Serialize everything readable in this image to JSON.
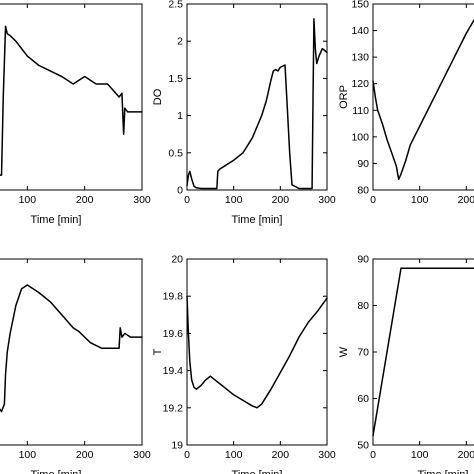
{
  "chart_data": [
    {
      "type": "line",
      "xlabel": "Time [min]",
      "ylabel": "",
      "xlim": [
        0,
        300
      ],
      "ylim": [
        0,
        100
      ],
      "x_ticks": [
        0,
        100,
        200,
        300
      ],
      "y_ticks": [],
      "series": [
        {
          "x": [
            0,
            5,
            10,
            15,
            20,
            30,
            40,
            50,
            55,
            58,
            62,
            65,
            70,
            80,
            90,
            100,
            120,
            140,
            160,
            180,
            200,
            220,
            240,
            260,
            265,
            268,
            270,
            275,
            285,
            300
          ],
          "y": [
            45,
            48,
            58,
            64,
            66,
            58,
            30,
            8,
            8,
            50,
            88,
            84,
            83,
            80,
            76,
            72,
            67,
            64,
            61,
            57,
            61,
            57,
            57,
            50,
            52,
            30,
            44,
            42,
            42,
            42
          ]
        }
      ]
    },
    {
      "type": "line",
      "ylabel": "DO",
      "xlabel": "Time [min]",
      "xlim": [
        0,
        300
      ],
      "ylim": [
        0,
        2.5
      ],
      "x_ticks": [
        0,
        100,
        200,
        300
      ],
      "y_ticks": [
        0,
        0.5,
        1,
        1.5,
        2,
        2.5
      ],
      "series": [
        {
          "x": [
            0,
            3,
            6,
            10,
            15,
            20,
            30,
            40,
            50,
            60,
            64,
            66,
            70,
            80,
            100,
            120,
            140,
            150,
            160,
            170,
            180,
            185,
            190,
            195,
            200,
            210,
            215,
            220,
            225,
            240,
            260,
            268,
            270,
            272,
            275,
            278,
            283,
            290,
            300
          ],
          "y": [
            0.06,
            0.2,
            0.25,
            0.15,
            0.05,
            0.03,
            0.02,
            0.02,
            0.02,
            0.02,
            0.02,
            0.25,
            0.28,
            0.32,
            0.4,
            0.5,
            0.7,
            0.85,
            1.0,
            1.2,
            1.48,
            1.6,
            1.62,
            1.6,
            1.65,
            1.68,
            1.1,
            0.5,
            0.07,
            0.02,
            0.02,
            0.02,
            1.2,
            2.3,
            1.9,
            1.7,
            1.8,
            1.9,
            1.85
          ]
        }
      ]
    },
    {
      "type": "line",
      "ylabel": "ORP",
      "xlabel": "",
      "xlim": [
        0,
        300
      ],
      "ylim": [
        80,
        150
      ],
      "x_ticks": [
        0,
        100,
        200
      ],
      "y_ticks": [
        80,
        90,
        100,
        110,
        120,
        130,
        140,
        150
      ],
      "series": [
        {
          "x": [
            0,
            5,
            10,
            20,
            30,
            40,
            50,
            55,
            60,
            70,
            80,
            100,
            120,
            140,
            160,
            180,
            200,
            220,
            240,
            260,
            280,
            300
          ],
          "y": [
            121,
            115,
            110,
            105,
            99,
            94,
            89,
            84,
            86,
            91,
            97,
            104,
            111,
            118,
            125,
            132,
            139,
            145,
            147,
            148,
            149,
            150
          ]
        }
      ]
    },
    {
      "type": "line",
      "ylabel": "",
      "xlabel": "Time [min]",
      "xlim": [
        0,
        300
      ],
      "ylim": [
        0,
        100
      ],
      "x_ticks": [
        0,
        100,
        200,
        300
      ],
      "y_ticks": [],
      "series": [
        {
          "x": [
            0,
            5,
            15,
            25,
            35,
            45,
            55,
            60,
            62,
            65,
            70,
            80,
            90,
            100,
            110,
            120,
            140,
            160,
            180,
            190,
            200,
            210,
            230,
            250,
            260,
            262,
            265,
            270,
            280,
            290,
            300
          ],
          "y": [
            50,
            46,
            34,
            28,
            26,
            22,
            18,
            22,
            38,
            50,
            60,
            75,
            84,
            86,
            84,
            82,
            77,
            70,
            63,
            61,
            58,
            55,
            52,
            52,
            52,
            63,
            58,
            60,
            58,
            58,
            58
          ]
        }
      ]
    },
    {
      "type": "line",
      "ylabel": "T",
      "xlabel": "Time [min]",
      "xlim": [
        0,
        300
      ],
      "ylim": [
        19,
        20
      ],
      "x_ticks": [
        0,
        100,
        200,
        300
      ],
      "y_ticks": [
        19,
        19.2,
        19.4,
        19.6,
        19.8,
        20
      ],
      "series": [
        {
          "x": [
            0,
            3,
            6,
            10,
            15,
            20,
            30,
            40,
            50,
            60,
            70,
            80,
            100,
            120,
            140,
            150,
            160,
            180,
            200,
            220,
            240,
            260,
            280,
            300
          ],
          "y": [
            19.8,
            19.6,
            19.45,
            19.35,
            19.31,
            19.3,
            19.32,
            19.35,
            19.37,
            19.35,
            19.33,
            19.31,
            19.27,
            19.24,
            19.21,
            19.2,
            19.22,
            19.3,
            19.39,
            19.48,
            19.58,
            19.66,
            19.72,
            19.79
          ]
        }
      ]
    },
    {
      "type": "line",
      "ylabel": "W",
      "xlabel": "Time [min]",
      "xlim": [
        0,
        300
      ],
      "ylim": [
        50,
        90
      ],
      "x_ticks": [
        0,
        100,
        200
      ],
      "y_ticks": [
        50,
        60,
        70,
        80,
        90
      ],
      "series": [
        {
          "x": [
            0,
            60,
            100,
            200,
            300
          ],
          "y": [
            52,
            88,
            88,
            88,
            88
          ]
        }
      ]
    }
  ]
}
